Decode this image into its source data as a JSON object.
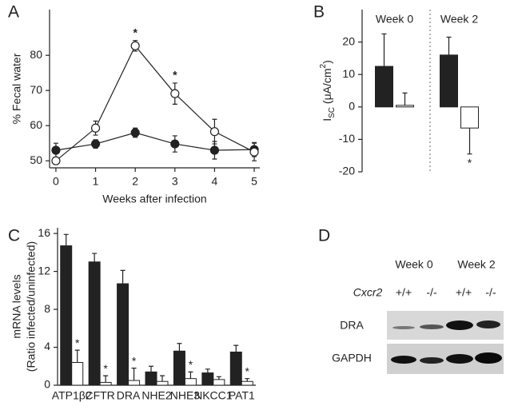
{
  "chart_data": [
    {
      "type": "line",
      "panel": "A",
      "ylabel": "% Fecal water",
      "xlabel": "Weeks after infection",
      "x": [
        0,
        1,
        2,
        3,
        4,
        5
      ],
      "series": [
        {
          "color": "#222222",
          "values": [
            53,
            54.8,
            58,
            54.8,
            53,
            53.2
          ],
          "errors": [
            2,
            1.2,
            1.3,
            2.3,
            2.5,
            2
          ]
        },
        {
          "color": "#ffffff",
          "values": [
            50,
            59.3,
            82.7,
            69.1,
            58.3,
            52.5
          ],
          "errors": [
            1,
            2,
            1.5,
            3,
            3.5,
            2.5
          ]
        }
      ],
      "xlim": [
        -0.16,
        5.14
      ],
      "xticks": [
        0,
        1,
        2,
        3,
        4,
        5
      ],
      "ylim": [
        48,
        93
      ],
      "yticks": [
        50,
        60,
        70,
        80
      ],
      "annotations": [
        {
          "text": "*",
          "x": 2
        },
        {
          "text": "*",
          "x": 3
        }
      ]
    },
    {
      "type": "bar",
      "panel": "B",
      "ylabel": [
        "I",
        "SC",
        " (μA/cm",
        "2",
        ")"
      ],
      "categories": [
        "Week 0",
        "Week 2"
      ],
      "series": [
        {
          "color": "#222222",
          "values": [
            12.5,
            16
          ],
          "errors": [
            10,
            5.5
          ]
        },
        {
          "color": "#ffffff",
          "values": [
            0.5,
            -6.5
          ],
          "errors": [
            3.8,
            8
          ]
        }
      ],
      "ylim": [
        -20,
        30
      ],
      "yticks": [
        -20,
        -10,
        0,
        10,
        20
      ],
      "annotations": [
        {
          "text": "*",
          "x": "Week 2"
        }
      ]
    },
    {
      "type": "bar",
      "panel": "C",
      "ylabel": [
        "mRNA levels",
        "(Ratio infected/uninfected)"
      ],
      "categories": [
        "ATP1β2",
        "CFTR",
        "DRA",
        "NHE2",
        "NHE3",
        "NKCC1",
        "PAT1"
      ],
      "series": [
        {
          "color": "#222222",
          "values": [
            14.7,
            13,
            10.7,
            1.4,
            3.6,
            1.3,
            3.5
          ],
          "errors": [
            1.2,
            0.9,
            1.4,
            0.6,
            0.8,
            0.4,
            0.7
          ]
        },
        {
          "color": "#ffffff",
          "values": [
            2.4,
            0.3,
            0.5,
            0.4,
            0.7,
            0.6,
            0.4
          ],
          "errors": [
            1.3,
            0.7,
            1.3,
            0.6,
            0.7,
            0.3,
            0.3
          ]
        }
      ],
      "ylim": [
        0,
        16.6
      ],
      "yticks": [
        0,
        4,
        8,
        12,
        16
      ],
      "annotations": [
        {
          "text": "*",
          "x": "ATP1β2"
        },
        {
          "text": "*",
          "x": "CFTR"
        },
        {
          "text": "*",
          "x": "DRA"
        },
        {
          "text": "*",
          "x": "NHE3"
        },
        {
          "text": "*",
          "x": "PAT1"
        }
      ]
    }
  ],
  "blot": {
    "panel": "D",
    "groups": [
      "Week 0",
      "Week 2"
    ],
    "genotype_label": "Cxcr2",
    "genotypes": [
      "+/+",
      "-/-",
      "+/+",
      "-/-"
    ],
    "rows": [
      "DRA",
      "GAPDH"
    ]
  }
}
